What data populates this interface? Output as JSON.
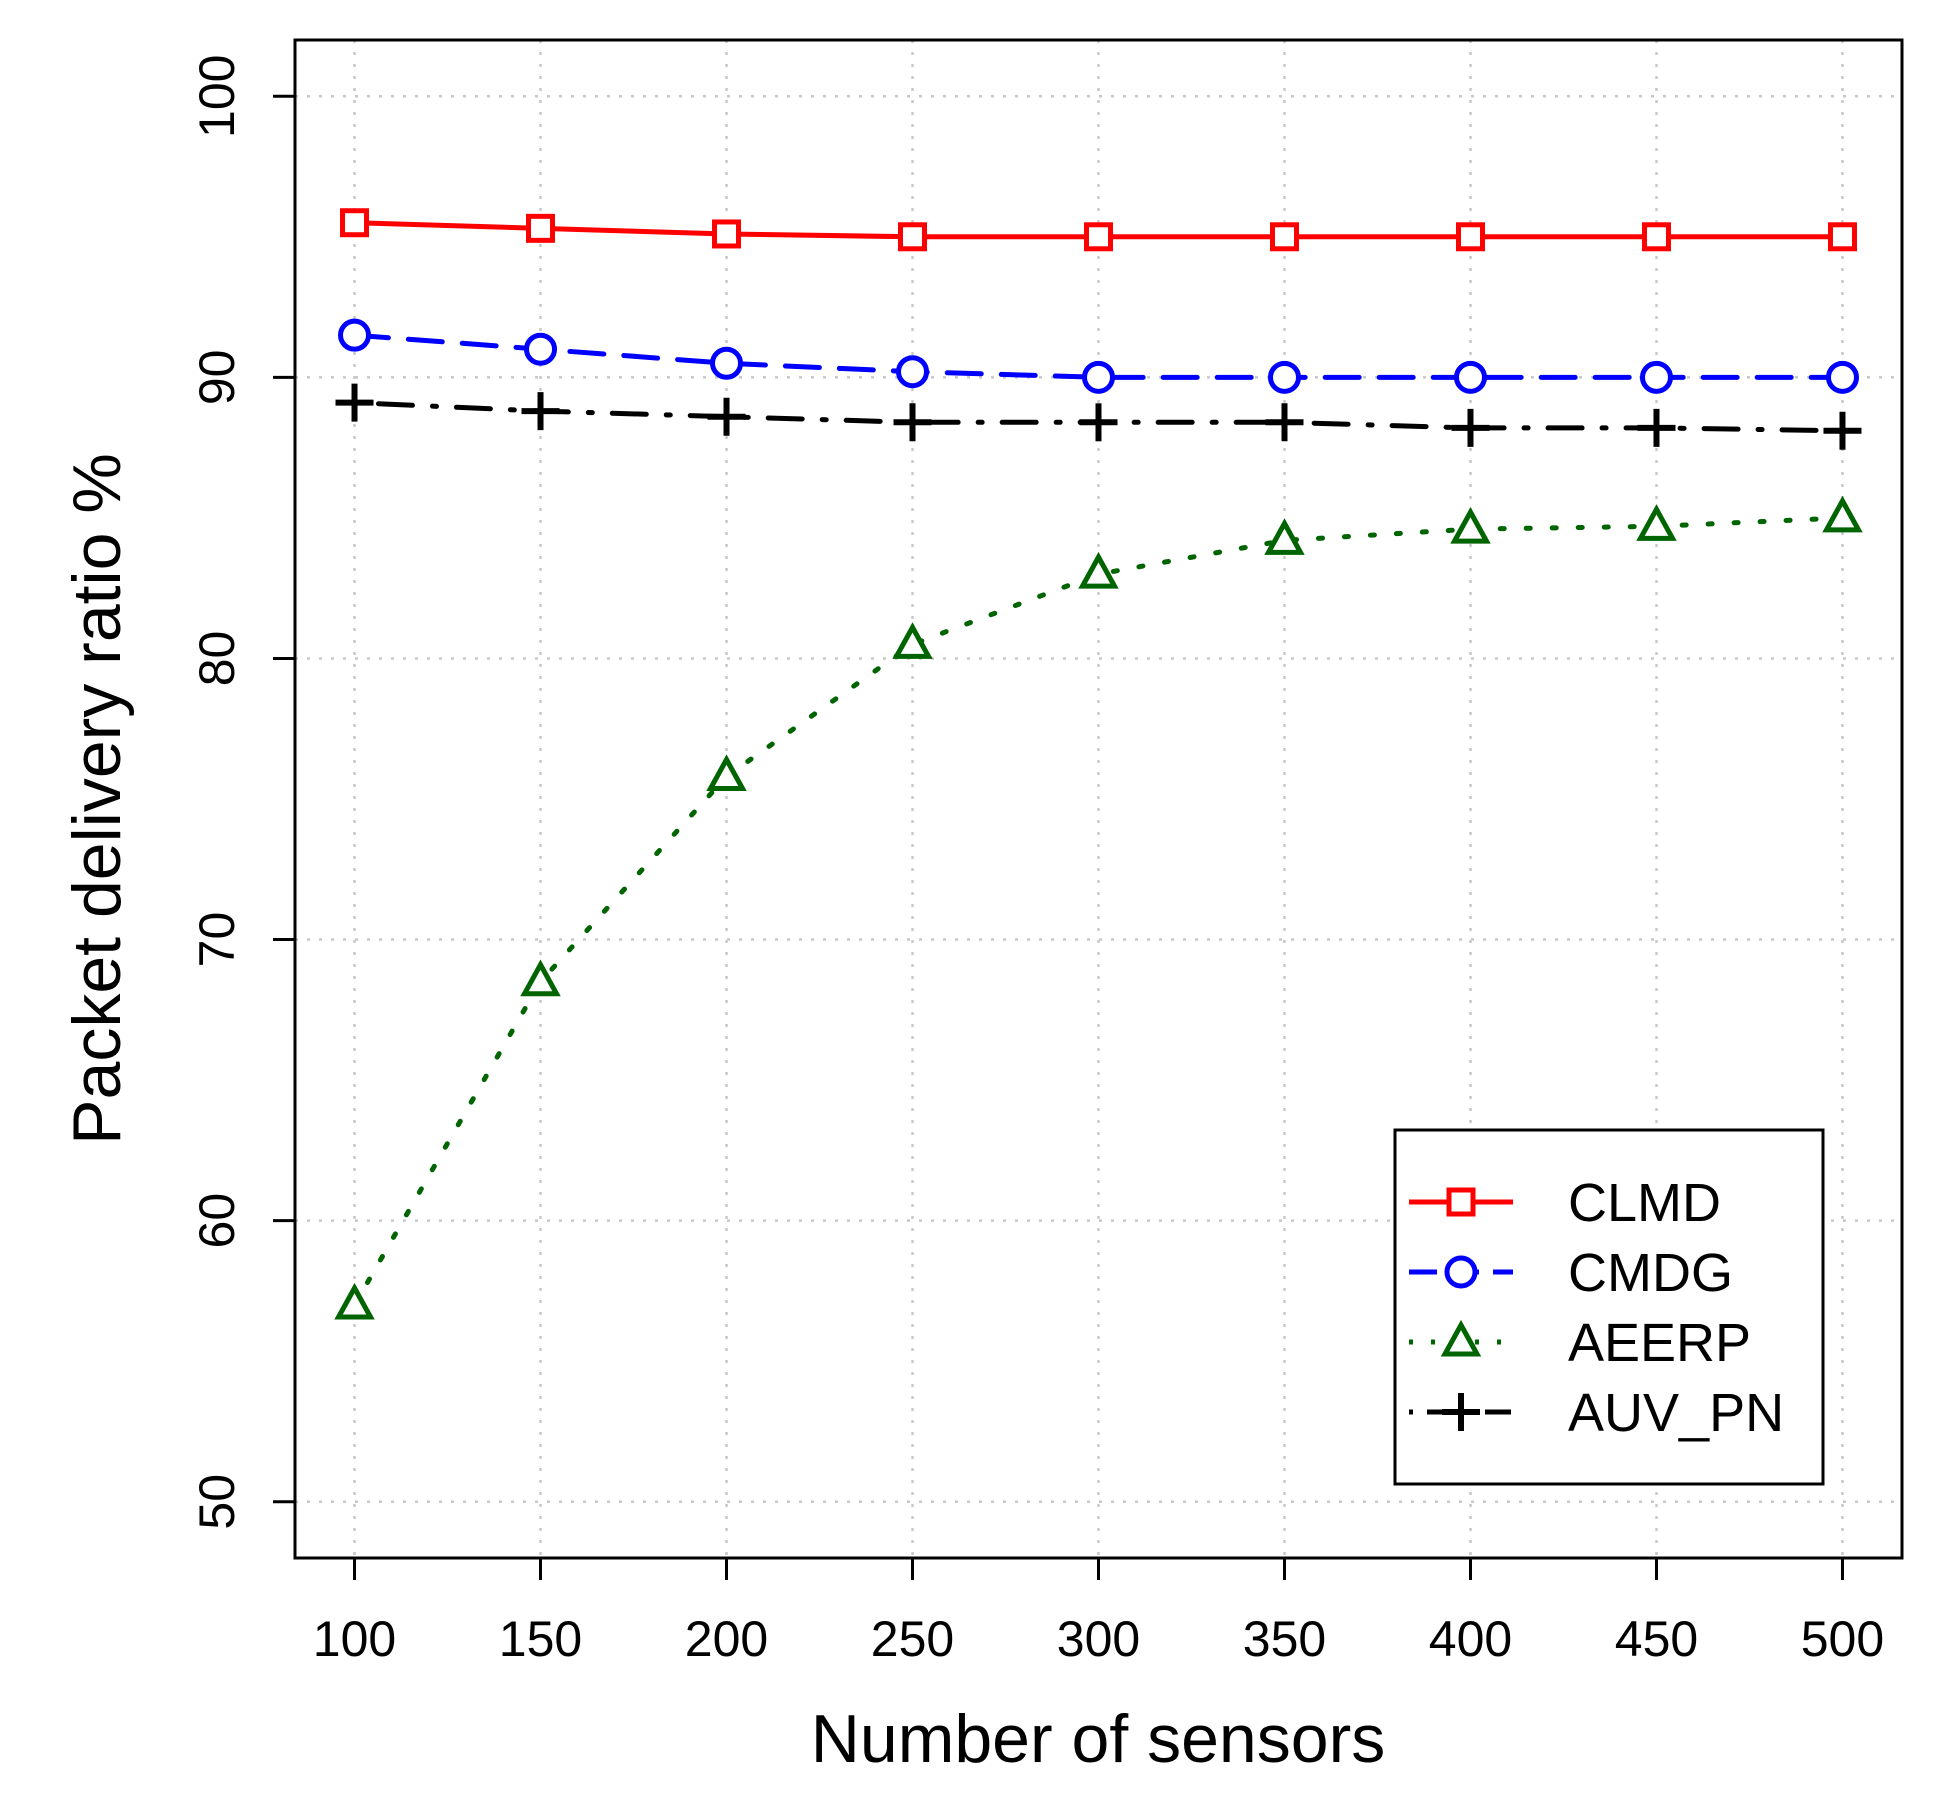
{
  "chart_data": {
    "type": "line",
    "title": "",
    "xlabel": "Number of sensors",
    "ylabel": "Packet delivery ratio %",
    "x": [
      100,
      150,
      200,
      250,
      300,
      350,
      400,
      450,
      500
    ],
    "xticks": [
      100,
      150,
      200,
      250,
      300,
      350,
      400,
      450,
      500
    ],
    "yticks": [
      50,
      60,
      70,
      80,
      90,
      100
    ],
    "xlim": [
      84,
      516
    ],
    "ylim": [
      48,
      102
    ],
    "grid": true,
    "legend_position": "bottom-right",
    "series": [
      {
        "name": "CLMD",
        "color": "#ff0000",
        "marker": "square",
        "line": "solid",
        "values": [
          95.5,
          95.3,
          95.1,
          95.0,
          95.0,
          95.0,
          95.0,
          95.0,
          95.0
        ]
      },
      {
        "name": "CMDG",
        "color": "#0000ff",
        "marker": "circle",
        "line": "dashed",
        "values": [
          91.5,
          91.0,
          90.5,
          90.2,
          90.0,
          90.0,
          90.0,
          90.0,
          90.0
        ]
      },
      {
        "name": "AEERP",
        "color": "#006400",
        "marker": "triangle",
        "line": "dotted",
        "values": [
          57.0,
          68.5,
          75.8,
          80.5,
          83.0,
          84.2,
          84.6,
          84.7,
          85.0
        ]
      },
      {
        "name": "AUV_PN",
        "color": "#000000",
        "marker": "plus",
        "line": "dashdot",
        "values": [
          89.1,
          88.8,
          88.6,
          88.4,
          88.4,
          88.4,
          88.2,
          88.2,
          88.1
        ]
      }
    ]
  }
}
